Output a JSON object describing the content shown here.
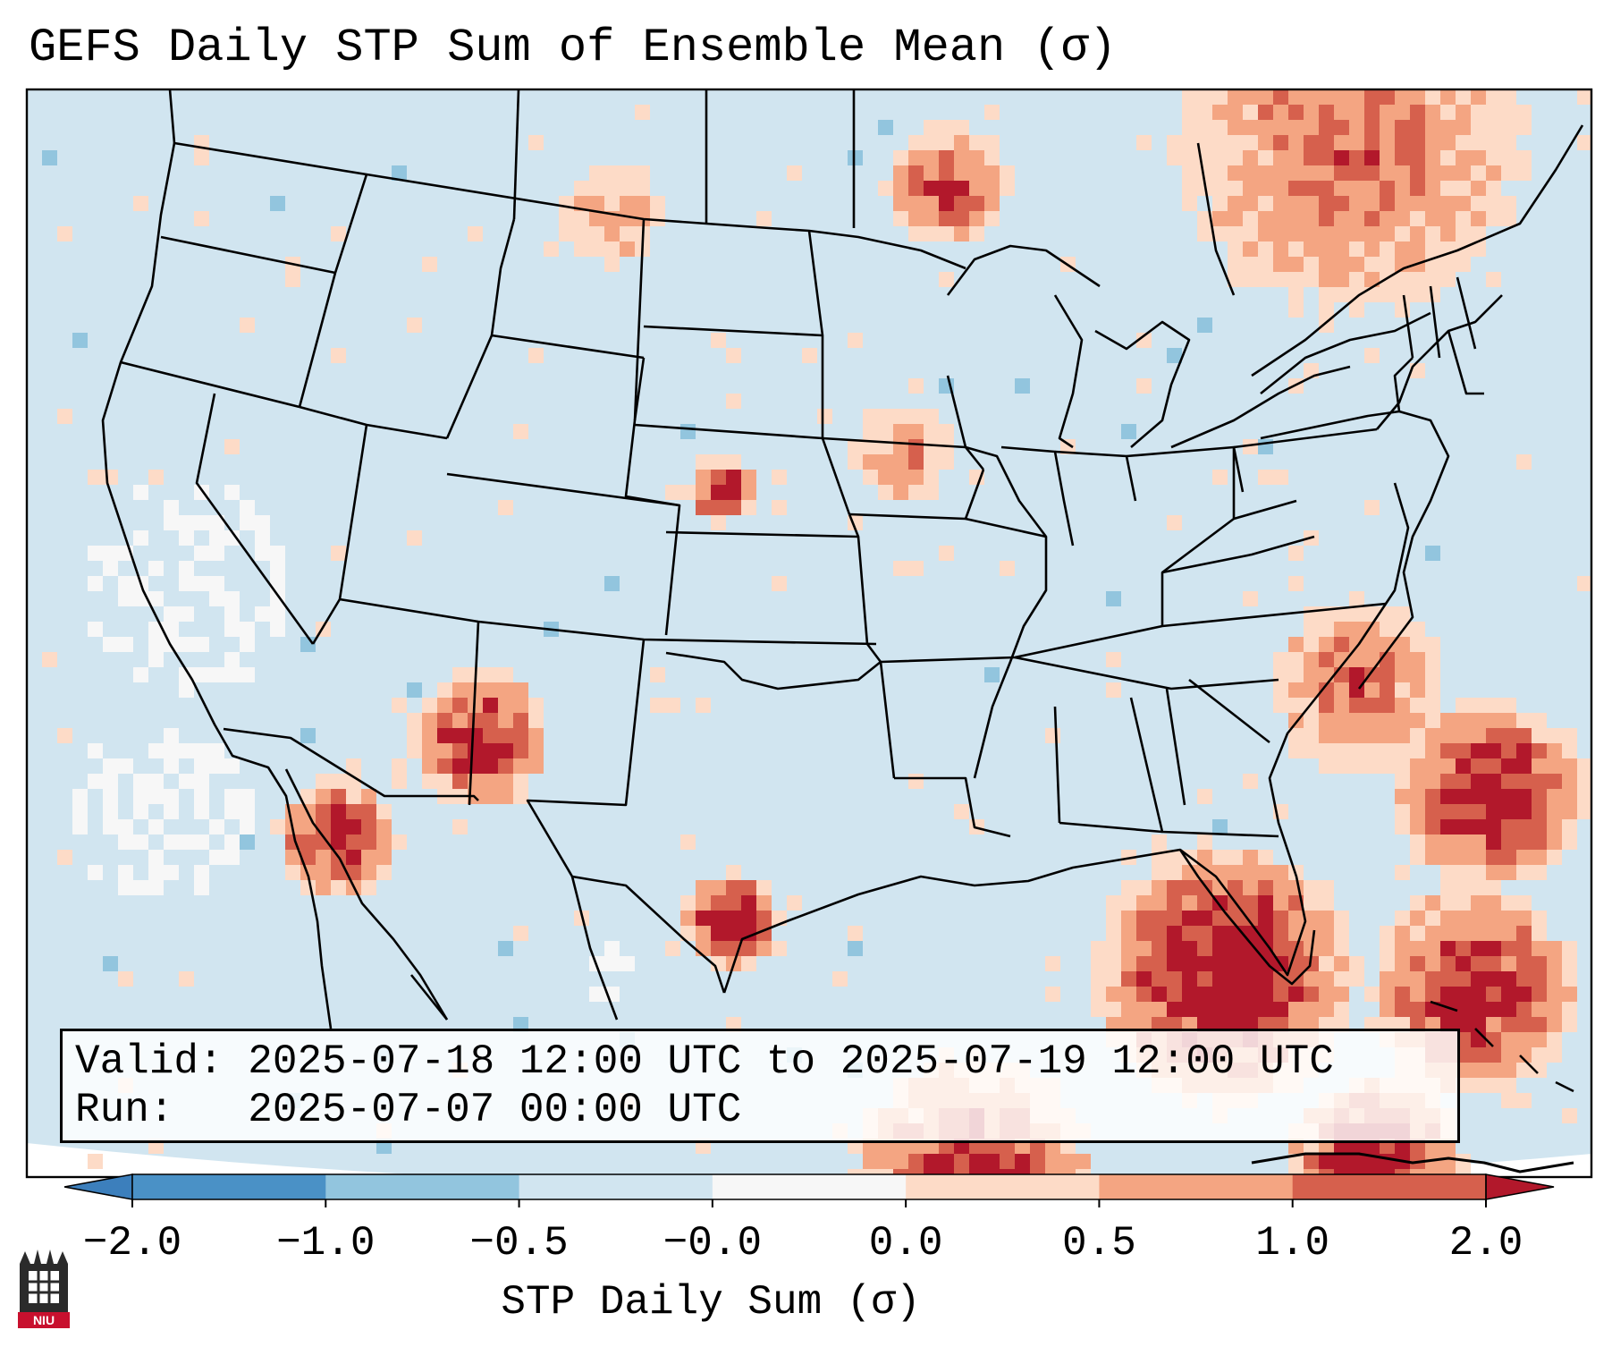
{
  "title": "GEFS Daily STP Sum of Ensemble Mean (σ)",
  "info": {
    "valid_line": "Valid: 2025-07-18 12:00 UTC to 2025-07-19 12:00 UTC",
    "run_line": "Run:   2025-07-07 00:00 UTC"
  },
  "colorbar": {
    "label": "STP Daily Sum (σ)",
    "ticks": [
      "−2.0",
      "−1.0",
      "−0.5",
      "−0.0",
      "0.0",
      "0.5",
      "1.0",
      "2.0"
    ],
    "colors": {
      "under": "#3c7fbc",
      "bins": [
        "#4a91c6",
        "#92c5de",
        "#d1e5f0",
        "#f7f7f7",
        "#fddbc7",
        "#f4a582",
        "#d6604d"
      ],
      "over": "#b2182b"
    }
  },
  "map": {
    "background": "#d1e5f0",
    "neutral": "#f7f7f7",
    "region": "CONUS, southern Canada, northern Mexico, Gulf of Mexico, western Atlantic",
    "hotspots": [
      {
        "name": "Southern Arizona / Sonora",
        "level": "over"
      },
      {
        "name": "Northern Sonora / Gulf of California coast",
        "level": "over"
      },
      {
        "name": "South Texas",
        "level": "over"
      },
      {
        "name": "Central Nebraska",
        "level": "over"
      },
      {
        "name": "South Florida / Gulf of Mexico",
        "level": "over"
      },
      {
        "name": "Western Atlantic",
        "level": "over"
      },
      {
        "name": "Bahamas / Caribbean",
        "level": "over"
      },
      {
        "name": "Southern Quebec",
        "level": "high"
      },
      {
        "name": "Carolinas coast",
        "level": "high"
      }
    ]
  },
  "logo": {
    "text": "NIU"
  }
}
